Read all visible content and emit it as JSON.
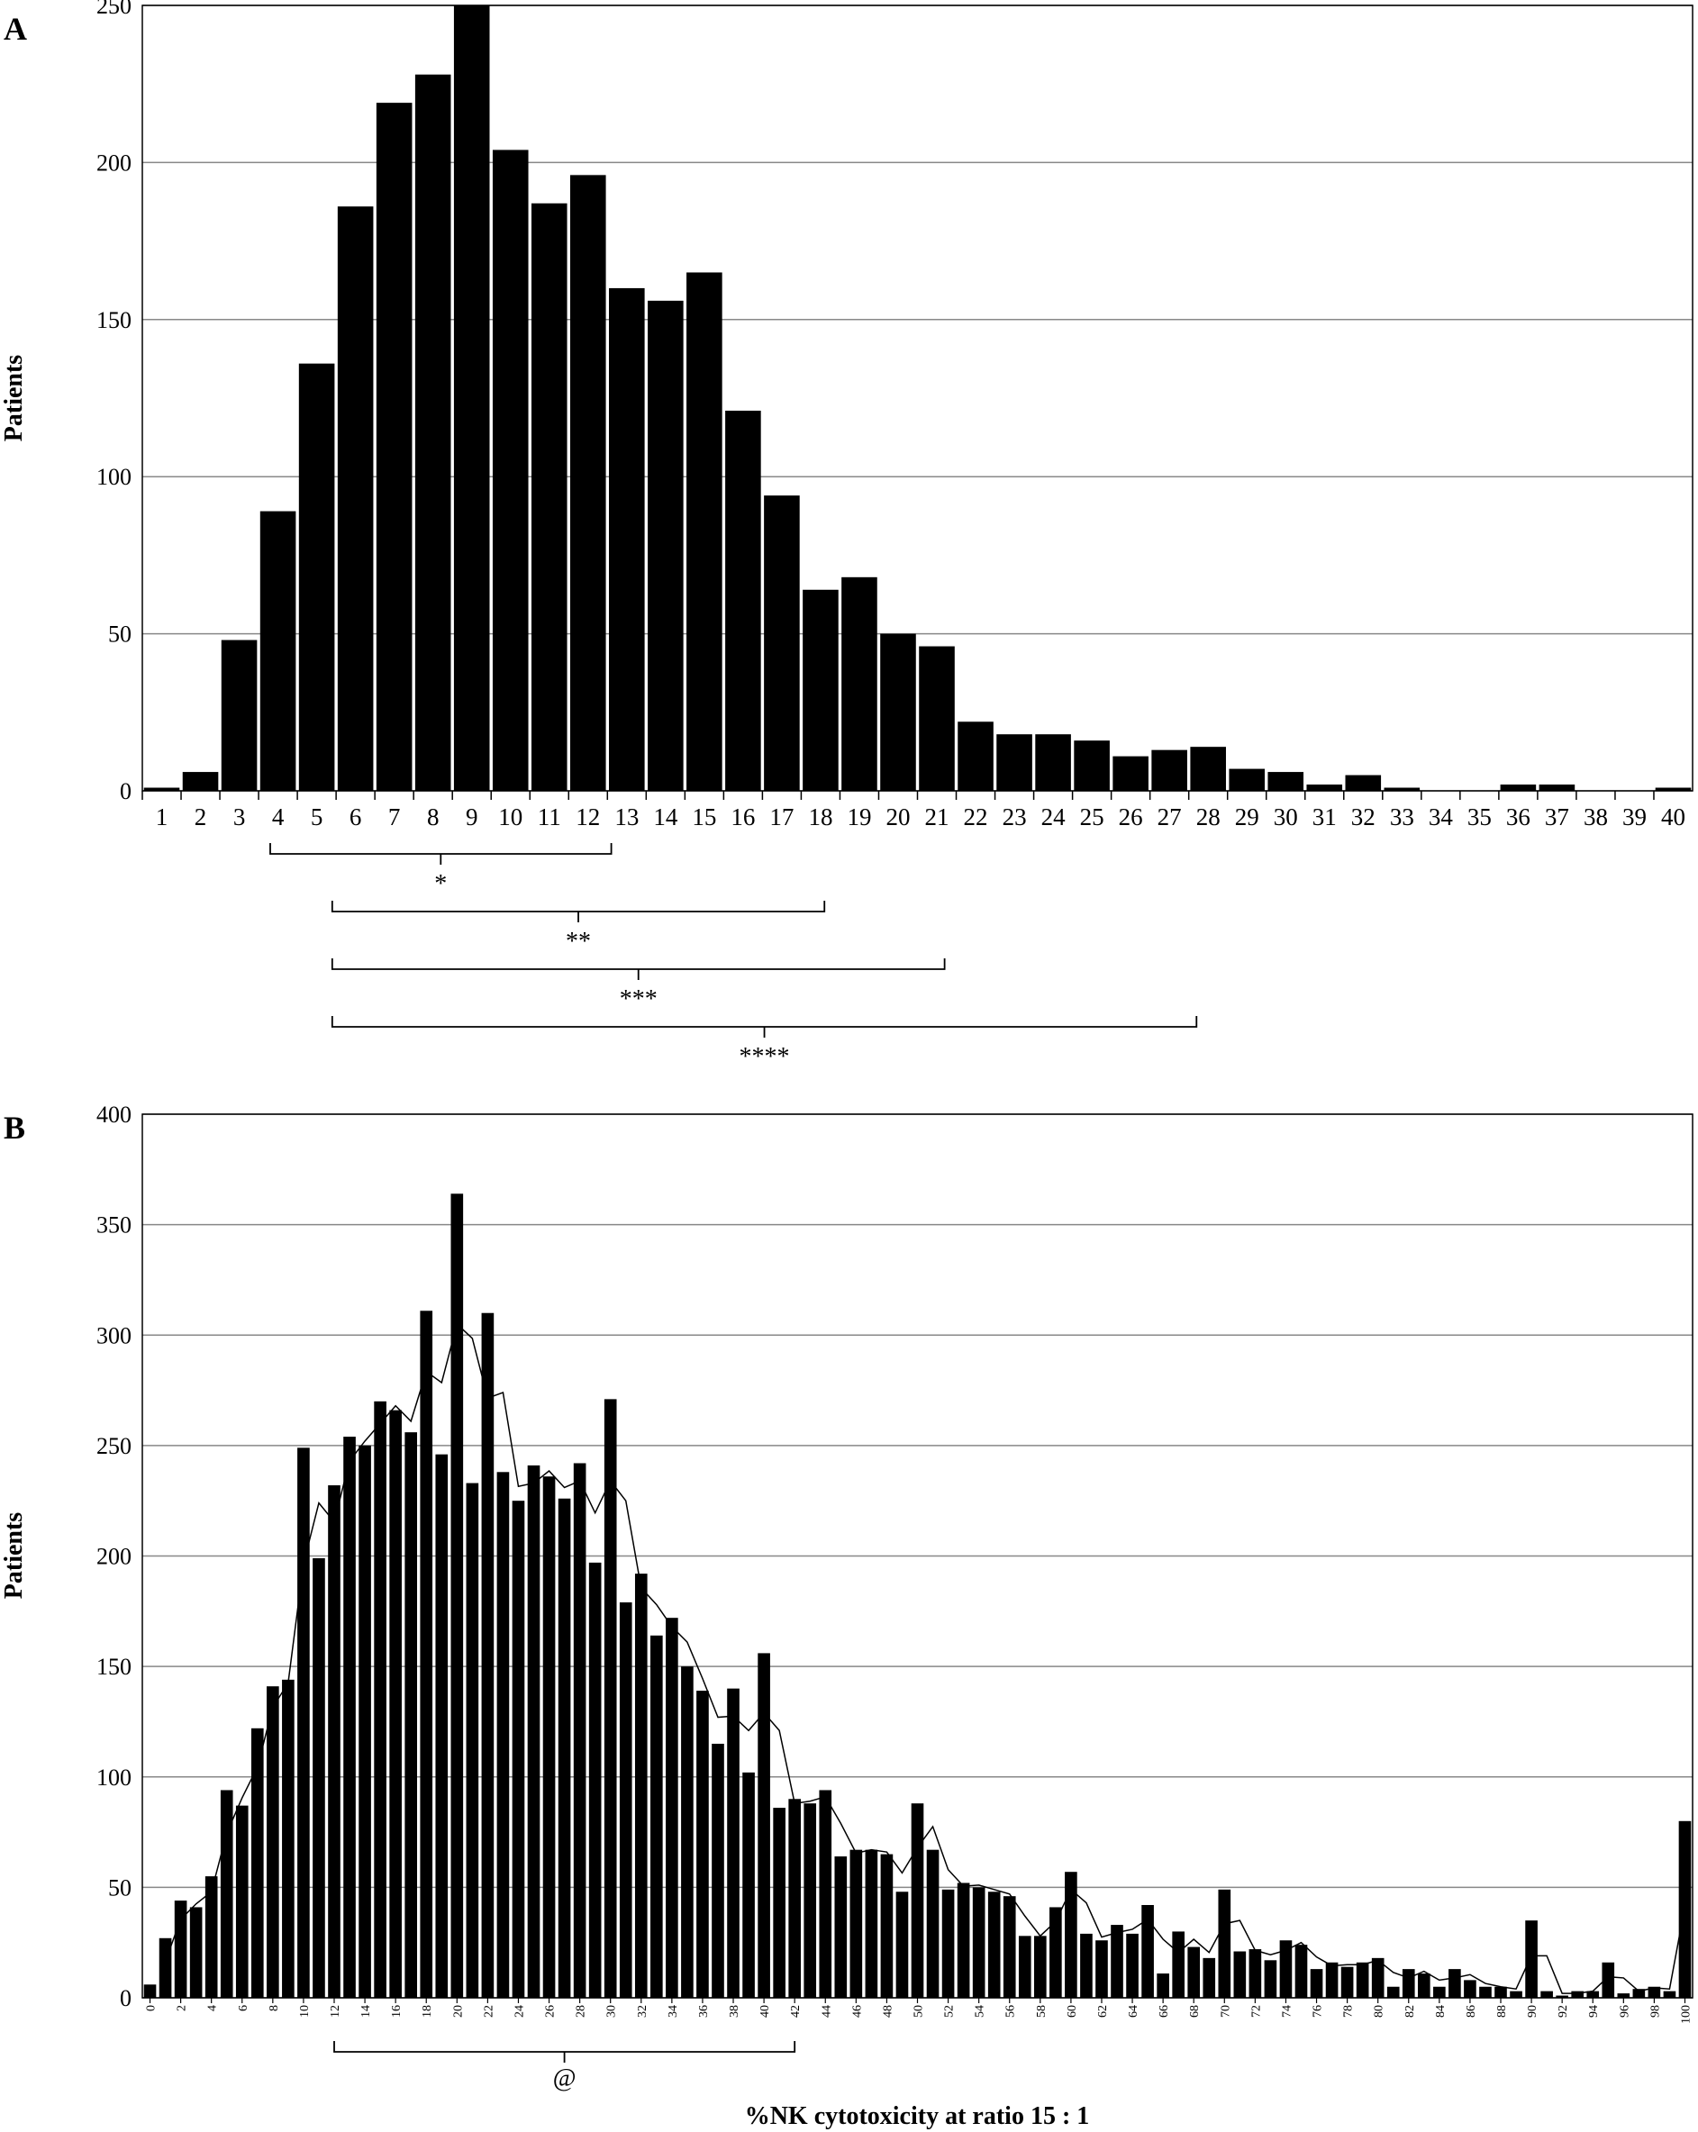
{
  "chart_data": [
    {
      "type": "bar",
      "label": "A",
      "ylabel": "Patients",
      "color": "#000000",
      "categories": [
        "1",
        "2",
        "3",
        "4",
        "5",
        "6",
        "7",
        "8",
        "9",
        "10",
        "11",
        "12",
        "13",
        "14",
        "15",
        "16",
        "17",
        "18",
        "19",
        "20",
        "21",
        "22",
        "23",
        "24",
        "25",
        "26",
        "27",
        "28",
        "29",
        "30",
        "31",
        "32",
        "33",
        "34",
        "35",
        "36",
        "37",
        "38",
        "39",
        "40"
      ],
      "values": [
        1,
        6,
        48,
        89,
        136,
        186,
        219,
        228,
        250,
        204,
        187,
        196,
        160,
        156,
        165,
        121,
        94,
        64,
        68,
        50,
        46,
        22,
        18,
        18,
        16,
        11,
        13,
        14,
        7,
        6,
        2,
        5,
        1,
        0,
        0,
        2,
        2,
        0,
        0,
        1
      ],
      "ylim": [
        0,
        250
      ],
      "yticks": [
        0,
        50,
        100,
        150,
        200,
        250
      ],
      "grid": true,
      "annotations": [
        "*",
        "**",
        "***",
        "****"
      ]
    },
    {
      "type": "bar",
      "label": "B",
      "ylabel": "Patients",
      "xlabel": "%NK cytotoxicity at ratio 15 : 1",
      "x": [
        0,
        1,
        2,
        3,
        4,
        5,
        6,
        7,
        8,
        9,
        10,
        11,
        12,
        13,
        14,
        15,
        16,
        17,
        18,
        19,
        20,
        21,
        22,
        23,
        24,
        25,
        26,
        27,
        28,
        29,
        30,
        31,
        32,
        33,
        34,
        35,
        36,
        37,
        38,
        39,
        40,
        41,
        42,
        43,
        44,
        45,
        46,
        47,
        48,
        49,
        50,
        51,
        52,
        53,
        54,
        55,
        56,
        57,
        58,
        59,
        60,
        61,
        62,
        63,
        64,
        65,
        66,
        67,
        68,
        69,
        70,
        71,
        72,
        73,
        74,
        75,
        76,
        77,
        78,
        79,
        80,
        81,
        82,
        83,
        84,
        85,
        86,
        87,
        88,
        89,
        90,
        91,
        92,
        93,
        94,
        95,
        96,
        97,
        98,
        99,
        100
      ],
      "series": [
        {
          "type": "bar",
          "color": "#000000",
          "values": [
            6,
            27,
            44,
            41,
            55,
            94,
            87,
            122,
            141,
            144,
            249,
            199,
            232,
            254,
            250,
            270,
            266,
            256,
            311,
            246,
            364,
            233,
            310,
            238,
            225,
            241,
            236,
            226,
            242,
            197,
            271,
            179,
            192,
            164,
            172,
            150,
            139,
            115,
            140,
            102,
            156,
            86,
            90,
            88,
            94,
            64,
            67,
            67,
            65,
            48,
            88,
            67,
            49,
            52,
            50,
            48,
            46,
            28,
            28,
            41,
            57,
            29,
            26,
            33,
            29,
            42,
            11,
            30,
            23,
            18,
            49,
            21,
            22,
            17,
            26,
            24,
            13,
            16,
            14,
            16,
            18,
            5,
            13,
            11,
            5,
            13,
            8,
            5,
            5,
            3,
            35,
            3,
            1,
            3,
            3,
            16,
            2,
            4,
            5,
            3,
            80
          ]
        },
        {
          "type": "line",
          "color": "#000000",
          "values": [
            null,
            16.5,
            35.5,
            42.5,
            48,
            74.5,
            90.5,
            104.5,
            131.5,
            142.5,
            196.5,
            224,
            215.5,
            243,
            252,
            260,
            268,
            261,
            283.5,
            278.5,
            305,
            298.5,
            271.5,
            274,
            231.5,
            233,
            238.5,
            231,
            234,
            219.5,
            234,
            225,
            185.5,
            178,
            168,
            161,
            144.5,
            127,
            127.5,
            121,
            129,
            121,
            88,
            89,
            91,
            79,
            65.5,
            67,
            66,
            56.5,
            68,
            77.5,
            58,
            50.5,
            51,
            49,
            47,
            37,
            28,
            34.5,
            49,
            43,
            27.5,
            29.5,
            31,
            35.5,
            26.5,
            20.5,
            26.5,
            20.5,
            33.5,
            35,
            21.5,
            19.5,
            21.5,
            25,
            18.5,
            14.5,
            15,
            15,
            17,
            11.5,
            9,
            12,
            8,
            9,
            10.5,
            6.5,
            5,
            4,
            19,
            19,
            2,
            2,
            3,
            9.5,
            9,
            3,
            4.5,
            4,
            41.5
          ]
        }
      ],
      "xlim": [
        -0.5,
        100.5
      ],
      "xticks": [
        0,
        2,
        4,
        6,
        8,
        10,
        12,
        14,
        16,
        18,
        20,
        22,
        24,
        26,
        28,
        30,
        32,
        34,
        36,
        38,
        40,
        42,
        44,
        46,
        48,
        50,
        52,
        54,
        56,
        58,
        60,
        62,
        64,
        66,
        68,
        70,
        72,
        74,
        76,
        78,
        80,
        82,
        84,
        86,
        88,
        90,
        92,
        94,
        96,
        98,
        100
      ],
      "ylim": [
        0,
        400
      ],
      "yticks": [
        0,
        50,
        100,
        150,
        200,
        250,
        300,
        350,
        400
      ],
      "grid": true,
      "annotations": [
        "@"
      ]
    }
  ]
}
